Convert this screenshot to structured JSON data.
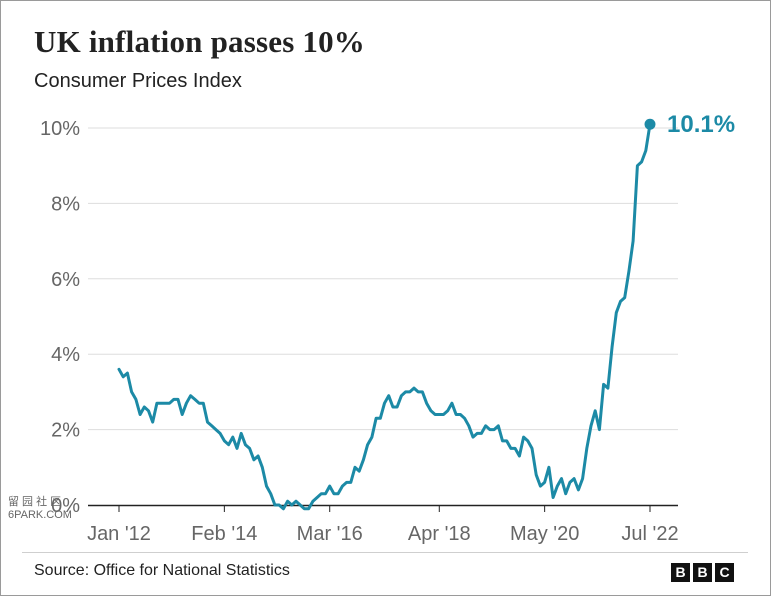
{
  "header": {
    "title": "UK inflation passes 10%",
    "subtitle": "Consumer Prices Index"
  },
  "footer": {
    "source": "Source: Office for National Statistics",
    "logo_letters": [
      "B",
      "B",
      "C"
    ]
  },
  "watermark": {
    "line1": "留 园 社 区",
    "line2": "6PARK.COM"
  },
  "colors": {
    "line": "#1c8aa6",
    "grid": "#dddddd",
    "axis": "#222222",
    "tick_text": "#666666"
  },
  "chart_data": {
    "type": "line",
    "title": "UK inflation passes 10%",
    "subtitle": "Consumer Prices Index",
    "xlabel": "",
    "ylabel": "",
    "ylim": [
      0,
      10
    ],
    "x_tick_labels": [
      "Jan '12",
      "Feb '14",
      "Mar '16",
      "Apr '18",
      "May '20",
      "Jul '22"
    ],
    "y_tick_labels": [
      "0%",
      "2%",
      "4%",
      "6%",
      "8%",
      "10%"
    ],
    "y_ticks": [
      0,
      2,
      4,
      6,
      8,
      10
    ],
    "grid": true,
    "end_label": "10.1%",
    "x": [
      "Jan 2012",
      "Feb 2012",
      "Mar 2012",
      "Apr 2012",
      "May 2012",
      "Jun 2012",
      "Jul 2012",
      "Aug 2012",
      "Sep 2012",
      "Oct 2012",
      "Nov 2012",
      "Dec 2012",
      "Jan 2013",
      "Feb 2013",
      "Mar 2013",
      "Apr 2013",
      "May 2013",
      "Jun 2013",
      "Jul 2013",
      "Aug 2013",
      "Sep 2013",
      "Oct 2013",
      "Nov 2013",
      "Dec 2013",
      "Jan 2014",
      "Feb 2014",
      "Mar 2014",
      "Apr 2014",
      "May 2014",
      "Jun 2014",
      "Jul 2014",
      "Aug 2014",
      "Sep 2014",
      "Oct 2014",
      "Nov 2014",
      "Dec 2014",
      "Jan 2015",
      "Feb 2015",
      "Mar 2015",
      "Apr 2015",
      "May 2015",
      "Jun 2015",
      "Jul 2015",
      "Aug 2015",
      "Sep 2015",
      "Oct 2015",
      "Nov 2015",
      "Dec 2015",
      "Jan 2016",
      "Feb 2016",
      "Mar 2016",
      "Apr 2016",
      "May 2016",
      "Jun 2016",
      "Jul 2016",
      "Aug 2016",
      "Sep 2016",
      "Oct 2016",
      "Nov 2016",
      "Dec 2016",
      "Jan 2017",
      "Feb 2017",
      "Mar 2017",
      "Apr 2017",
      "May 2017",
      "Jun 2017",
      "Jul 2017",
      "Aug 2017",
      "Sep 2017",
      "Oct 2017",
      "Nov 2017",
      "Dec 2017",
      "Jan 2018",
      "Feb 2018",
      "Mar 2018",
      "Apr 2018",
      "May 2018",
      "Jun 2018",
      "Jul 2018",
      "Aug 2018",
      "Sep 2018",
      "Oct 2018",
      "Nov 2018",
      "Dec 2018",
      "Jan 2019",
      "Feb 2019",
      "Mar 2019",
      "Apr 2019",
      "May 2019",
      "Jun 2019",
      "Jul 2019",
      "Aug 2019",
      "Sep 2019",
      "Oct 2019",
      "Nov 2019",
      "Dec 2019",
      "Jan 2020",
      "Feb 2020",
      "Mar 2020",
      "Apr 2020",
      "May 2020",
      "Jun 2020",
      "Jul 2020",
      "Aug 2020",
      "Sep 2020",
      "Oct 2020",
      "Nov 2020",
      "Dec 2020",
      "Jan 2021",
      "Feb 2021",
      "Mar 2021",
      "Apr 2021",
      "May 2021",
      "Jun 2021",
      "Jul 2021",
      "Aug 2021",
      "Sep 2021",
      "Oct 2021",
      "Nov 2021",
      "Dec 2021",
      "Jan 2022",
      "Feb 2022",
      "Mar 2022",
      "Apr 2022",
      "May 2022",
      "Jun 2022",
      "Jul 2022"
    ],
    "series": [
      {
        "values": [
          3.6,
          3.4,
          3.5,
          3.0,
          2.8,
          2.4,
          2.6,
          2.5,
          2.2,
          2.7,
          2.7,
          2.7,
          2.7,
          2.8,
          2.8,
          2.4,
          2.7,
          2.9,
          2.8,
          2.7,
          2.7,
          2.2,
          2.1,
          2.0,
          1.9,
          1.7,
          1.6,
          1.8,
          1.5,
          1.9,
          1.6,
          1.5,
          1.2,
          1.3,
          1.0,
          0.5,
          0.3,
          0.0,
          0.0,
          -0.1,
          0.1,
          0.0,
          0.1,
          0.0,
          -0.1,
          -0.1,
          0.1,
          0.2,
          0.3,
          0.3,
          0.5,
          0.3,
          0.3,
          0.5,
          0.6,
          0.6,
          1.0,
          0.9,
          1.2,
          1.6,
          1.8,
          2.3,
          2.3,
          2.7,
          2.9,
          2.6,
          2.6,
          2.9,
          3.0,
          3.0,
          3.1,
          3.0,
          3.0,
          2.7,
          2.5,
          2.4,
          2.4,
          2.4,
          2.5,
          2.7,
          2.4,
          2.4,
          2.3,
          2.1,
          1.8,
          1.9,
          1.9,
          2.1,
          2.0,
          2.0,
          2.1,
          1.7,
          1.7,
          1.5,
          1.5,
          1.3,
          1.8,
          1.7,
          1.5,
          0.8,
          0.5,
          0.6,
          1.0,
          0.2,
          0.5,
          0.7,
          0.3,
          0.6,
          0.7,
          0.4,
          0.7,
          1.5,
          2.1,
          2.5,
          2.0,
          3.2,
          3.1,
          4.2,
          5.1,
          5.4,
          5.5,
          6.2,
          7.0,
          9.0,
          9.1,
          9.4,
          10.1
        ]
      }
    ]
  }
}
